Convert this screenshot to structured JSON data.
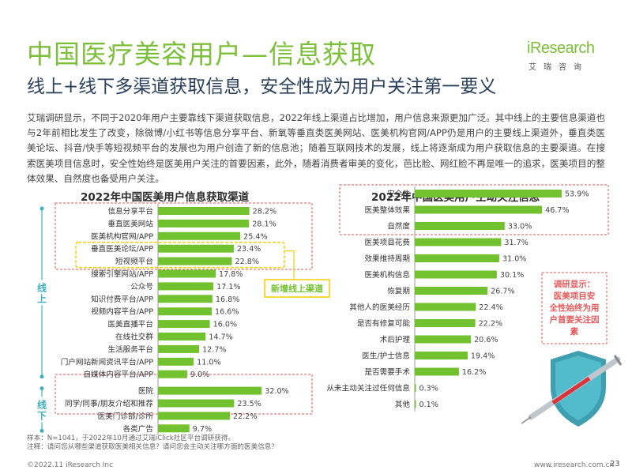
{
  "header": {
    "title": "中国医疗美容用户—信息获取",
    "subtitle": "线上+线下多渠道获取信息，安全性成为用户关注第一要义",
    "logo_word": "iResearch",
    "logo_cn": "艾瑞咨询"
  },
  "intro": "艾瑞调研显示，不同于2020年用户主要靠线下渠道获取信息，2022年线上渠道占比增加，用户信息来源更加广泛。其中线上的主要信息渠道也与2年前相比发生了改变，除微博/小红书等信息分享平台、新氧等垂直类医美网站、医美机构官网/APP仍是用户的主要线上渠道外，垂直类医美论坛、抖音/快手等短视频平台的发展也为用户创造了新的信息池；随着互联网技术的发展，线上将逐渐成为用户获取信息的主要渠道。在搜索医美项目信息时，安全性始终是医美用户关注的首要因素，此外，随着消费者审美的变化，芭比脸、网红脸不再是唯一的追求，医美项目的整体效果、自然度也备受用户关注。",
  "chart_data": [
    {
      "type": "bar",
      "orientation": "horizontal",
      "title": "2022年中国医美用户信息获取渠道",
      "unit": "%",
      "categories": [
        "信息分享平台",
        "垂直医美网站",
        "医美机构官网/APP",
        "垂直医美论坛/APP",
        "短视频平台",
        "搜索引擎网站/APP",
        "公众号",
        "知识付费平台/APP",
        "视频内容平台/APP",
        "医美直播平台",
        "在线社交群",
        "生活服务平台",
        "门户网站新闻资讯平台/APP",
        "自媒体内容平台/APP",
        "医院",
        "同学/同事/朋友介绍和推荐",
        "医美门诊部/诊所",
        "各类广告"
      ],
      "values": [
        28.2,
        28.1,
        25.4,
        23.4,
        22.8,
        17.8,
        17.1,
        16.8,
        16.6,
        16.0,
        14.7,
        12.7,
        11.0,
        9.0,
        32.0,
        23.5,
        22.2,
        9.7
      ],
      "groups": [
        {
          "label": "线上",
          "range": [
            0,
            13
          ]
        },
        {
          "label": "线下",
          "range": [
            14,
            17
          ]
        }
      ],
      "annotation": "新增线上渠道",
      "highlight_indices": [
        3,
        4
      ],
      "colors": {
        "bar": "#72c230",
        "highlight": "#f3d000",
        "group_marker": "#3fb0c0",
        "dash_box": "#e25a5a"
      }
    },
    {
      "type": "bar",
      "orientation": "horizontal",
      "title": "2022年中国医美用户主动关注信息",
      "unit": "%",
      "categories": [
        "安全性",
        "医美整体效果",
        "自然度",
        "医美项目花费",
        "效果维持周期",
        "医美机构信息",
        "恢复期",
        "其他人的医美经历",
        "是否有修复可能",
        "术后护理",
        "医生/护士信息",
        "是否需要手术",
        "从未主动关注过任何信息",
        "其他"
      ],
      "values": [
        53.9,
        46.7,
        33.0,
        31.7,
        31.0,
        30.1,
        26.7,
        22.4,
        22.2,
        20.6,
        19.4,
        16.2,
        0.3,
        0.1
      ],
      "annotation": "调研显示：医美项目安全性始终为用户首要关注因素",
      "highlight_range": [
        0,
        2
      ],
      "colors": {
        "bar": "#72c230",
        "dash_box": "#e25a5a",
        "note": "#e25a5a"
      }
    }
  ],
  "footnotes": [
    "样本：N=1041，于2022年10月通过艾瑞iClick社区平台调研获得。",
    "注释：请问您从哪些渠道获取医美相关信息？请问您会主动关注哪方面的医美信息？"
  ],
  "footer": {
    "copyright": "©2022.11 iResearch Inc",
    "site": "www.iresearch.com.cn",
    "page": "23"
  }
}
